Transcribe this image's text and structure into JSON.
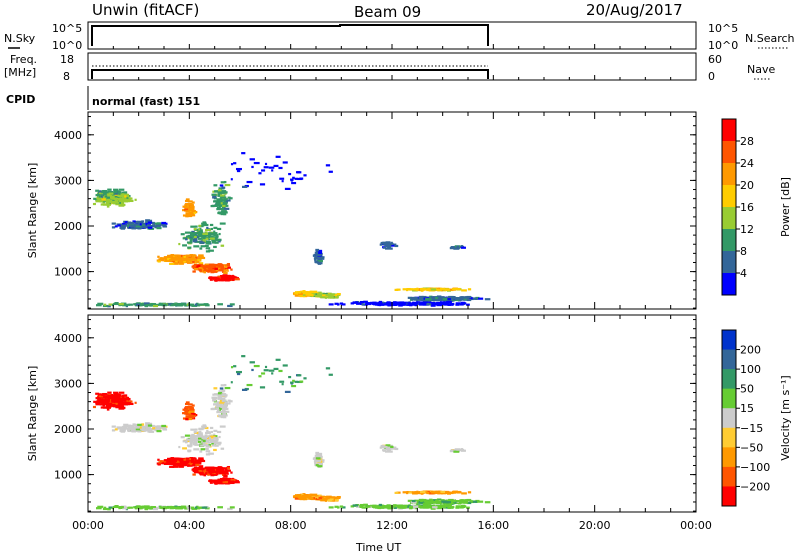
{
  "header": {
    "station": "Unwin (fitACF)",
    "beam": "Beam 09",
    "date": "20/Aug/2017"
  },
  "top_panels": {
    "nsky_label": "N.Sky",
    "nsky_ticks": [
      "10^5",
      "10^0"
    ],
    "nsearch_label": "N.Search",
    "nsearch_ticks": [
      "10^5",
      "10^0"
    ],
    "freq_label_1": "Freq.",
    "freq_label_2": "[MHz]",
    "freq_ticks": [
      "18",
      "8"
    ],
    "nave_label": "Nave",
    "nave_ticks": [
      "60",
      "0"
    ],
    "cpid_label": "CPID",
    "cpid_value": "normal (fast) 151"
  },
  "power_colorbar": {
    "label": "Power [dB]",
    "ticks": [
      "28",
      "24",
      "20",
      "16",
      "12",
      "8",
      "4"
    ],
    "colors": [
      "#ff0000",
      "#ff5500",
      "#ff9900",
      "#ffcc00",
      "#99cc33",
      "#339966",
      "#336699",
      "#0000ff"
    ]
  },
  "velocity_colorbar": {
    "label": "Velocity [m s⁻¹]",
    "ticks": [
      "200",
      "100",
      "50",
      "15",
      "−15",
      "−50",
      "−100",
      "−200"
    ],
    "colors": [
      "#0033cc",
      "#336699",
      "#339966",
      "#66cc33",
      "#cccccc",
      "#ffcc33",
      "#ff9900",
      "#ff5500",
      "#ff0000"
    ]
  },
  "chart_data": [
    {
      "type": "heatmap",
      "title": "Power",
      "ylabel": "Slant Range [km]",
      "xlabel": "Time UT",
      "ylim": [
        180,
        4500
      ],
      "yticks": [
        "4000",
        "3000",
        "2000",
        "1000"
      ],
      "xticks": [
        "00:00",
        "04:00",
        "08:00",
        "12:00",
        "16:00",
        "20:00",
        "00:00"
      ],
      "xlim_hours": [
        0,
        24
      ],
      "data_extent_hours": [
        0,
        16
      ]
    },
    {
      "type": "heatmap",
      "title": "Velocity",
      "ylabel": "Slant Range [km]",
      "xlabel": "Time UT",
      "ylim": [
        180,
        4500
      ],
      "yticks": [
        "4000",
        "3000",
        "2000",
        "1000"
      ],
      "xticks": [
        "00:00",
        "04:00",
        "08:00",
        "12:00",
        "16:00",
        "20:00",
        "00:00"
      ],
      "xlim_hours": [
        0,
        24
      ],
      "data_extent_hours": [
        0,
        16
      ]
    }
  ]
}
